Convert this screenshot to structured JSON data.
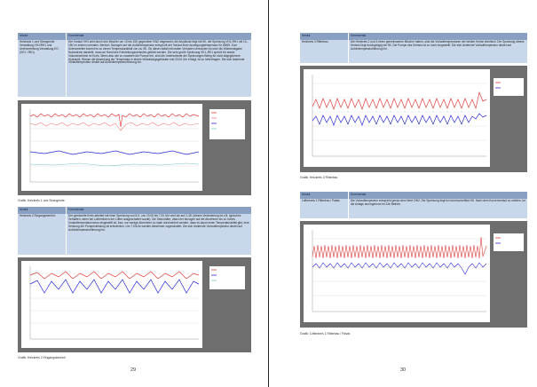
{
  "left_page": {
    "page_number": "29",
    "table1": {
      "header_modul": "Modul",
      "header_kommentar": "Kommentar",
      "modul": "Heizkreis 1 und Strangende Verwaltung VH1/RH1 und Unterverteilung Verwaltung EG (VE1 / RE1)",
      "kommentar": "Der Vorlauf VH1 wird durch den Mischer um 10 bis 15K gegenüber VW2 abgesenkt, die Amplitude liegt mit 5K, die Spreizung VH1-RH1 mit 12–15K im ersten normalen. Bereich. Bezogen auf die Außentemperatur entspricht der Vorlauf einer Auslegungstemperatur für 85/65. Zum Unterverteiler kommt es zu einem Temperaturabfall von ca. 5K. Ob dieser Abfall mit realen Verlusten verbunden ist oder die Wärmeabgabe Nutzwärme darstellt, muss an Hand des Rohrleitungsverlaufes geklärt werden. Die sehr große Spreizung VE1–RE1 spricht für starke Volumenströme im Kreis. Wenn also wie zu erwarten die Pumpe frei, sind die Unterschiede der Spreizungen Beleg für nicht abgeglichene Hydraulik. Warum die Absenkung der Temperatur in einem Verwaltungsgebäude erst 23.00 Uhr erfolgt, ist zu hinterfragen. Die sich ändernde Vorlauftemperatur deutet auf Außentemperaturführung hin."
    },
    "chart1_caption": "Grafik: Heizkreis 1 und Strangende",
    "table2": {
      "header_modul": "Modul",
      "header_kommentar": "Kommentar",
      "modul": "Heizkreis 2 Eingangsbereich",
      "kommentar": "Der gemischte Kreis arbeitet mit einer Spreizung von 8 K, von 20.00 bis 7.00 Uhr wird sie auf 2–3K (dieses Veränderung ist z.B. typisches Verhalten, wenn bei Lufterhitzern der Lüfter ausgeschaltet wurde). Die Sekundäre, dass hier bezogen auf die Abnehmer ein zu hohes Vorlauftemperaturniveau eingestellt ist, bzw. nur wenige Abnehmer so stark durchströmt werden, dass es kaum einen Temperaturabfall gibt, eine Senkung der Pumpenleistung ist erforderlich. Um 7.00Uhr werden Abnehmer zugeschaltet. Die sich ändernde Vorlauftemperatur deutet auf Außentemperaturführung hin."
    },
    "chart2_caption": "Grafik: Heizkreis 2 Eingangsbereich"
  },
  "right_page": {
    "page_number": "30",
    "table3": {
      "header_modul": "Modul",
      "header_kommentar": "Kommentar",
      "modul": "Heizkreis 3 Ritterbau",
      "kommentar": "Die Heizkreis 2 und 3 einen gemeinsamen Mischer haben, sind die Vorlauftemperaturen der beiden Kreise identisch. Die Spreizung dieses Kreises liegt durchgängig bei 5K. Die Pumpe des Kreises ist zu hoch eingestellt. Die sich ändernde Vorlauftemperatur deutet auf Außentemperaturführung hin."
    },
    "chart3_caption": "Grafik: Heizkreis 3 Ritterbau",
    "table4": {
      "header_modul": "Modul",
      "header_kommentar": "Kommentar",
      "modul": "Lüfterkreis 1 Ritterbau / Palais",
      "kommentar": "Die Vorlauftemperatur entspricht genau dem Wert VW2. Die Spreizung liegt bei durchschnittlich 5K. Nach dem Kurvenverlauf zu urteilen, ist die Anlage durchgehend im 24h Betrieb."
    },
    "chart4_caption": "Grafik: Lüfterkreis 1 Ritterbau / Palais"
  },
  "colors": {
    "table_header": "#8aa0c2",
    "table_body": "#c9d7ea",
    "chart_frame": "#6e6e6e",
    "series_red": "#e04040",
    "series_blue": "#2a2ad0",
    "series_teal": "#7fc8c8"
  }
}
